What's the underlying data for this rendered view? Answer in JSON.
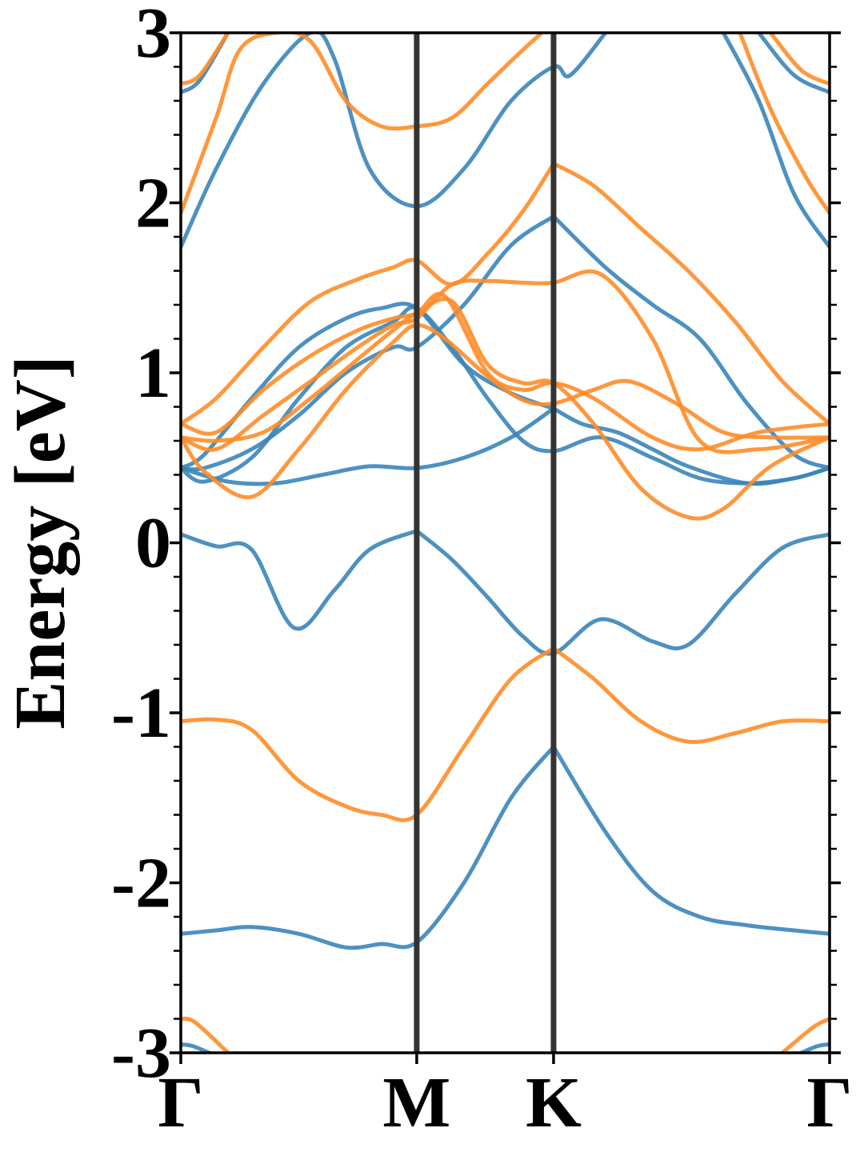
{
  "chart_data": {
    "type": "line",
    "title": "",
    "xlabel": "",
    "ylabel": "Energy [eV]",
    "ylim": [
      -3,
      3
    ],
    "xlim": [
      0,
      2.75
    ],
    "yticks": [
      -3,
      -2,
      -1,
      0,
      1,
      2,
      3
    ],
    "ytick_labels": [
      "-3",
      "-2",
      "-1",
      "0",
      "1",
      "2",
      "3"
    ],
    "y_minor_step": 0.2,
    "kpath_ticks": [
      {
        "label": "Γ",
        "x": 0
      },
      {
        "label": "M",
        "x": 1.0
      },
      {
        "label": "K",
        "x": 1.58
      },
      {
        "label": "Γ",
        "x": 2.75
      }
    ],
    "vlines": [
      1.0,
      1.58
    ],
    "grid": false,
    "legend": "none",
    "colors": {
      "spin_up": "#3a85b9",
      "spin_down": "#ff8c28",
      "vline": "#333333"
    },
    "series": [
      {
        "color": "spin_up",
        "x": [
          0,
          0.15,
          0.3,
          0.48,
          0.65,
          0.8,
          1.0
        ],
        "y": [
          0.05,
          -0.02,
          -0.04,
          -0.5,
          -0.28,
          -0.04,
          0.07
        ]
      },
      {
        "color": "spin_up",
        "x": [
          1.0,
          1.15,
          1.3,
          1.45,
          1.58,
          1.78,
          2.0,
          2.15,
          2.35,
          2.55,
          2.75
        ],
        "y": [
          0.07,
          -0.1,
          -0.32,
          -0.55,
          -0.65,
          -0.45,
          -0.58,
          -0.6,
          -0.3,
          -0.03,
          0.05
        ]
      },
      {
        "color": "spin_up",
        "x": [
          0,
          0.15,
          0.3,
          0.5,
          0.7,
          0.85,
          1.0,
          1.2,
          1.4,
          1.58
        ],
        "y": [
          -2.3,
          -2.28,
          -2.26,
          -2.3,
          -2.38,
          -2.36,
          -2.35,
          -2.0,
          -1.5,
          -1.2
        ]
      },
      {
        "color": "spin_up",
        "x": [
          1.58,
          1.8,
          2.0,
          2.2,
          2.4,
          2.6,
          2.75
        ],
        "y": [
          -1.2,
          -1.7,
          -2.05,
          -2.2,
          -2.25,
          -2.28,
          -2.3
        ]
      },
      {
        "color": "spin_up",
        "x": [
          0,
          0.1,
          0.3,
          0.5,
          0.7,
          0.9,
          1.0,
          1.2,
          1.4,
          1.58
        ],
        "y": [
          0.44,
          0.44,
          0.55,
          0.75,
          1.0,
          1.15,
          1.15,
          1.4,
          1.75,
          1.92
        ]
      },
      {
        "color": "spin_up",
        "x": [
          1.58,
          1.8,
          2.0,
          2.2,
          2.4,
          2.6,
          2.75
        ],
        "y": [
          1.92,
          1.62,
          1.4,
          1.2,
          0.82,
          0.52,
          0.44
        ]
      },
      {
        "color": "spin_up",
        "x": [
          0,
          0.1,
          0.3,
          0.5,
          0.7,
          0.9,
          1.0,
          1.15,
          1.3,
          1.45,
          1.58,
          1.78,
          2.0,
          2.2,
          2.4,
          2.6,
          2.75
        ],
        "y": [
          0.44,
          0.36,
          0.5,
          0.85,
          1.15,
          1.3,
          1.38,
          1.15,
          0.85,
          0.6,
          0.54,
          0.62,
          0.5,
          0.38,
          0.35,
          0.38,
          0.44
        ]
      },
      {
        "color": "spin_up",
        "x": [
          0,
          0.1,
          0.3,
          0.5,
          0.7,
          0.85,
          1.0,
          1.2,
          1.4,
          1.58
        ],
        "y": [
          0.44,
          0.52,
          0.85,
          1.15,
          1.32,
          1.38,
          1.38,
          1.05,
          0.88,
          0.79
        ]
      },
      {
        "color": "spin_up",
        "x": [
          0,
          0.2,
          0.4,
          0.6,
          0.8,
          1.0,
          1.2,
          1.4,
          1.58
        ],
        "y": [
          0.44,
          0.36,
          0.35,
          0.4,
          0.45,
          0.44,
          0.5,
          0.62,
          0.79
        ]
      },
      {
        "color": "spin_up",
        "x": [
          1.58,
          1.7,
          1.85,
          2.0,
          2.15,
          2.4,
          2.6,
          2.75
        ],
        "y": [
          0.79,
          0.7,
          0.65,
          0.55,
          0.45,
          0.35,
          0.38,
          0.44
        ]
      },
      {
        "color": "spin_up",
        "x": [
          0,
          0.15,
          0.35,
          0.55,
          0.65,
          0.8,
          1.0,
          1.2,
          1.4,
          1.58,
          1.65,
          1.8
        ],
        "y": [
          1.74,
          2.2,
          2.7,
          3.0,
          2.85,
          2.2,
          1.98,
          2.2,
          2.6,
          2.8,
          2.75,
          3.0
        ]
      },
      {
        "color": "spin_up",
        "x": [
          2.3,
          2.45,
          2.6,
          2.75
        ],
        "y": [
          3.0,
          2.6,
          2.05,
          1.74
        ]
      },
      {
        "color": "spin_up",
        "x": [
          0,
          0.08,
          0.2
        ],
        "y": [
          2.65,
          2.72,
          3.0
        ]
      },
      {
        "color": "spin_up",
        "x": [
          2.45,
          2.6,
          2.75
        ],
        "y": [
          3.0,
          2.75,
          2.65
        ]
      },
      {
        "color": "spin_up",
        "x": [
          0,
          0.05,
          0.12
        ],
        "y": [
          -2.95,
          -2.96,
          -3.0
        ]
      },
      {
        "color": "spin_up",
        "x": [
          2.63,
          2.7,
          2.75
        ],
        "y": [
          -3.0,
          -2.96,
          -2.95
        ]
      },
      {
        "color": "spin_down",
        "x": [
          0,
          0.15,
          0.3,
          0.5,
          0.7,
          0.85,
          1.0,
          1.2,
          1.4,
          1.58
        ],
        "y": [
          -1.05,
          -1.04,
          -1.1,
          -1.4,
          -1.55,
          -1.6,
          -1.6,
          -1.2,
          -0.8,
          -0.62
        ]
      },
      {
        "color": "spin_down",
        "x": [
          1.58,
          1.75,
          1.95,
          2.15,
          2.35,
          2.55,
          2.75
        ],
        "y": [
          -0.62,
          -0.8,
          -1.05,
          -1.17,
          -1.12,
          -1.05,
          -1.05
        ]
      },
      {
        "color": "spin_down",
        "x": [
          0,
          0.15,
          0.35,
          0.55,
          0.75,
          0.9,
          1.0,
          1.15,
          1.3,
          1.45,
          1.58
        ],
        "y": [
          0.7,
          0.85,
          1.15,
          1.42,
          1.55,
          1.62,
          1.66,
          1.52,
          1.7,
          1.95,
          2.23
        ]
      },
      {
        "color": "spin_down",
        "x": [
          1.58,
          1.75,
          1.95,
          2.15,
          2.35,
          2.55,
          2.75
        ],
        "y": [
          2.23,
          2.1,
          1.85,
          1.6,
          1.3,
          0.95,
          0.7
        ]
      },
      {
        "color": "spin_down",
        "x": [
          0,
          0.15,
          0.35,
          0.55,
          0.75,
          0.9,
          1.0,
          1.15,
          1.3,
          1.45,
          1.58,
          1.78,
          2.0,
          2.2,
          2.45,
          2.75
        ],
        "y": [
          0.62,
          0.55,
          0.75,
          0.95,
          1.15,
          1.28,
          1.32,
          1.52,
          1.54,
          1.53,
          1.53,
          1.58,
          1.2,
          0.6,
          0.55,
          0.62
        ]
      },
      {
        "color": "spin_down",
        "x": [
          0,
          0.1,
          0.3,
          0.5,
          0.7,
          0.9,
          1.0,
          1.12,
          1.3,
          1.45,
          1.58,
          1.75,
          1.9,
          2.1,
          2.3,
          2.5,
          2.75
        ],
        "y": [
          0.62,
          0.42,
          0.27,
          0.55,
          0.9,
          1.18,
          1.28,
          1.2,
          0.98,
          0.84,
          0.82,
          0.9,
          0.95,
          0.82,
          0.65,
          0.62,
          0.62
        ]
      },
      {
        "color": "spin_down",
        "x": [
          0,
          0.15,
          0.35,
          0.55,
          0.75,
          0.9,
          1.0,
          1.15,
          1.3,
          1.45,
          1.58,
          1.75,
          1.95,
          2.15,
          2.3,
          2.5,
          2.75
        ],
        "y": [
          0.62,
          0.6,
          0.65,
          0.85,
          1.08,
          1.25,
          1.35,
          1.42,
          1.05,
          0.94,
          0.94,
          0.7,
          0.32,
          0.15,
          0.2,
          0.45,
          0.62
        ]
      },
      {
        "color": "spin_down",
        "x": [
          0,
          0.15,
          0.35,
          0.55,
          0.75,
          0.9,
          1.0,
          1.12,
          1.3,
          1.45,
          1.58,
          1.75,
          2.0,
          2.2,
          2.45,
          2.75
        ],
        "y": [
          0.7,
          0.65,
          0.9,
          1.1,
          1.25,
          1.32,
          1.35,
          1.45,
          1.0,
          0.9,
          0.94,
          0.85,
          0.62,
          0.55,
          0.65,
          0.7
        ]
      },
      {
        "color": "spin_down",
        "x": [
          0,
          0.15,
          0.25,
          0.4,
          0.55,
          0.7,
          0.85,
          1.0,
          1.15,
          1.3,
          1.45,
          1.53
        ],
        "y": [
          1.94,
          2.5,
          2.9,
          3.0,
          2.95,
          2.6,
          2.45,
          2.45,
          2.5,
          2.7,
          2.9,
          3.0
        ]
      },
      {
        "color": "spin_down",
        "x": [
          2.37,
          2.5,
          2.65,
          2.75
        ],
        "y": [
          3.0,
          2.55,
          2.15,
          1.94
        ]
      },
      {
        "color": "spin_down",
        "x": [
          0,
          0.08,
          0.2
        ],
        "y": [
          2.7,
          2.75,
          3.0
        ]
      },
      {
        "color": "spin_down",
        "x": [
          2.5,
          2.63,
          2.75
        ],
        "y": [
          3.0,
          2.78,
          2.7
        ]
      },
      {
        "color": "spin_down",
        "x": [
          0,
          0.06,
          0.2
        ],
        "y": [
          -2.8,
          -2.82,
          -3.0
        ]
      },
      {
        "color": "spin_down",
        "x": [
          2.55,
          2.68,
          2.75
        ],
        "y": [
          -3.0,
          -2.85,
          -2.8
        ]
      }
    ]
  }
}
